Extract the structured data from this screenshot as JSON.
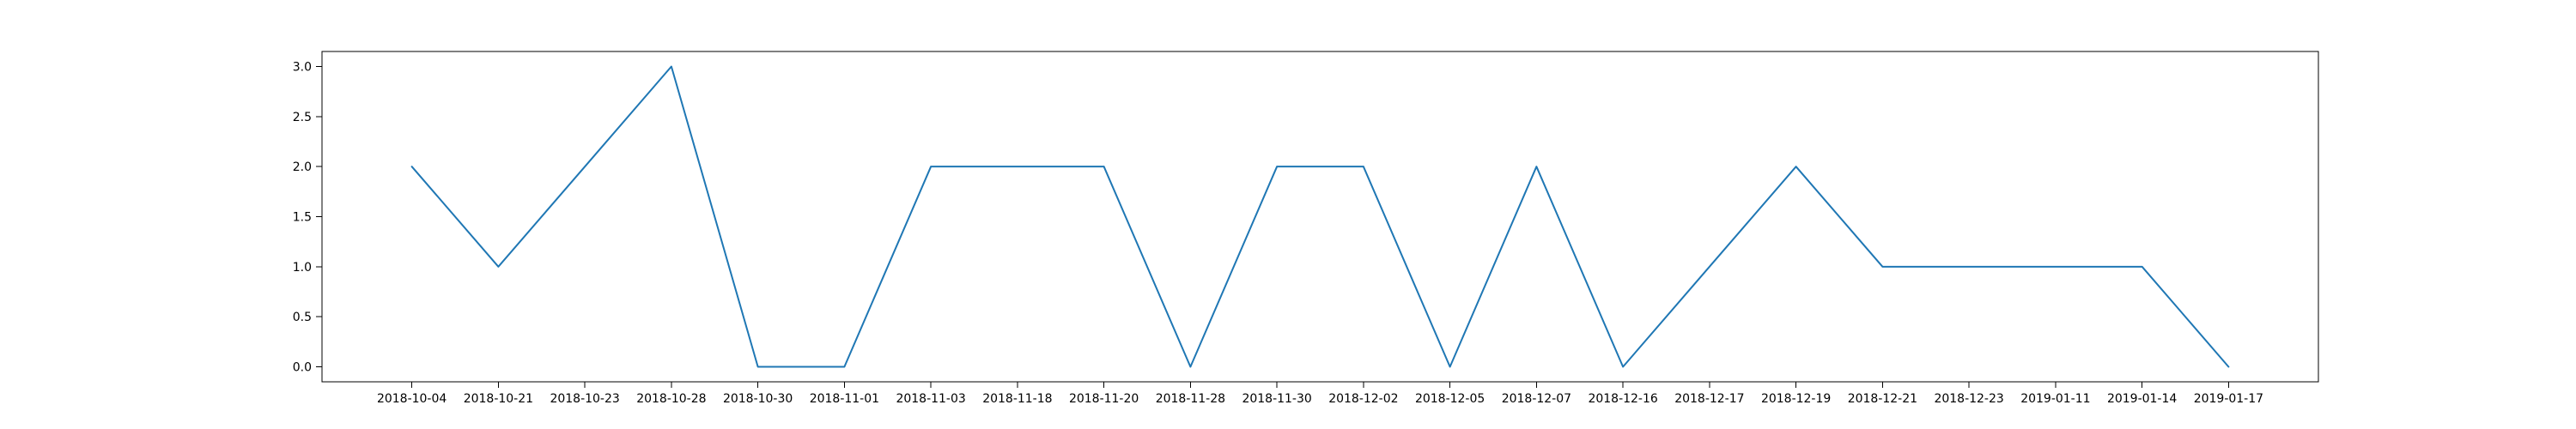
{
  "chart_data": {
    "type": "line",
    "title": "",
    "xlabel": "",
    "ylabel": "",
    "x": [
      "2018-10-04",
      "2018-10-21",
      "2018-10-23",
      "2018-10-28",
      "2018-10-30",
      "2018-11-01",
      "2018-11-03",
      "2018-11-18",
      "2018-11-20",
      "2018-11-28",
      "2018-11-30",
      "2018-12-02",
      "2018-12-05",
      "2018-12-07",
      "2018-12-16",
      "2018-12-17",
      "2018-12-19",
      "2018-12-21",
      "2018-12-23",
      "2019-01-11",
      "2019-01-14",
      "2019-01-17"
    ],
    "series": [
      {
        "values": [
          2,
          1,
          2,
          3,
          0,
          0,
          2,
          2,
          2,
          0,
          2,
          2,
          0,
          2,
          0,
          1,
          2,
          1,
          1,
          1,
          1,
          0
        ],
        "color": "#1f77b4"
      }
    ],
    "ylim": [
      -0.15,
      3.15
    ],
    "yticks": [
      0.0,
      0.5,
      1.0,
      1.5,
      2.0,
      2.5,
      3.0
    ],
    "ytick_labels": [
      "0.0",
      "0.5",
      "1.0",
      "1.5",
      "2.0",
      "2.5",
      "3.0"
    ],
    "grid": false,
    "legend": "none"
  }
}
